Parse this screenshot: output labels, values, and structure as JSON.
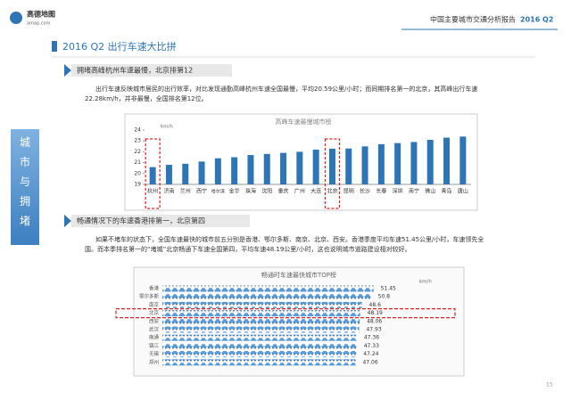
{
  "header": {
    "logo": "高德地图",
    "logo_sub": "amap.com",
    "report_title": "中国主要城市交通分析报告",
    "report_period": "2016 Q2"
  },
  "section_title": "2016 Q2 出行车速大比拼",
  "sidebar": "城市与拥堵",
  "blocks": [
    {
      "heading": "拥堵高峰杭州车速最慢，北京排第12",
      "text": "出行车速反映城市居民的出行效率，对比发现通勤高峰杭州车速全国最慢，平均20.59公里/小时；而同期排名第一的北京，其高峰出行车速22.28km/h，并非最慢，全国排名第12位。"
    },
    {
      "heading": "畅通情况下的车速香港排第一，北京第四",
      "text": "如果不堵车的状态下，全国车速最快的城市前五分别是香港、鄂尔多斯、南京、北京、西安。香港季度平均车速51.45公里/小时，车速领先全国。而本季排名第一的“堵城”北京畅通下车速全国第四，平均车速48.19公里/小时，这也说明城市道路建设相对较好。"
    }
  ],
  "page_number": "15",
  "chart_data": [
    {
      "type": "bar",
      "title": "高峰车速最慢城市榜",
      "y_unit": "km/h",
      "color": "#2e75b6",
      "categories": [
        "杭州",
        "济南",
        "兰州",
        "西宁",
        "哈尔滨",
        "金华",
        "珠海",
        "沈阳",
        "重庆",
        "广州",
        "大连",
        "北京",
        "昆明",
        "长沙",
        "长春",
        "深圳",
        "南宁",
        "佛山",
        "青岛",
        "唐山"
      ],
      "values": [
        20.59,
        20.8,
        20.9,
        21.1,
        21.4,
        21.5,
        21.7,
        21.8,
        21.9,
        22.0,
        22.2,
        22.28,
        22.3,
        22.5,
        22.7,
        22.8,
        22.9,
        23.1,
        23.3,
        23.4
      ],
      "ylim": [
        19,
        24
      ],
      "yticks": [
        19,
        20,
        21,
        22,
        23,
        24
      ],
      "grid": false,
      "highlight": [
        "杭州",
        "北京"
      ]
    },
    {
      "type": "pictograph",
      "title": "畅通时车速最快城市TOP榜",
      "unit": "km/h",
      "color": "#5b9bd5",
      "categories": [
        "香港",
        "鄂尔多斯",
        "南京",
        "北京",
        "西安",
        "武汉",
        "南通",
        "镇江",
        "无锡",
        "郑州"
      ],
      "values": [
        51.45,
        50.8,
        48.6,
        48.19,
        48.06,
        47.93,
        47.36,
        47.33,
        47.24,
        47.06
      ],
      "highlight": [
        "北京"
      ]
    }
  ]
}
